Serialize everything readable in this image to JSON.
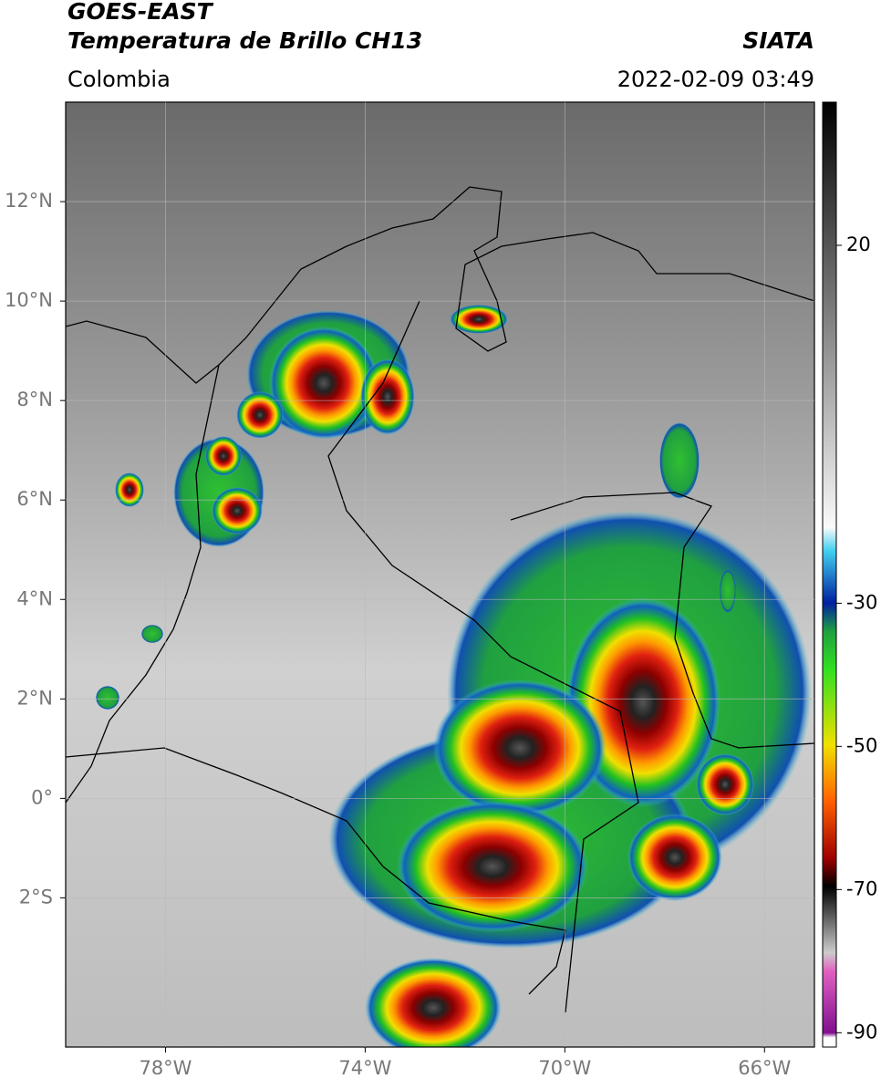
{
  "header": {
    "title": "GOES-EAST",
    "subtitle": "Temperatura de Brillo CH13",
    "region": "Colombia",
    "source": "SIATA",
    "datetime": "2022-02-09 03:49"
  },
  "map": {
    "xlim": [
      -80,
      -65
    ],
    "ylim": [
      -5,
      14
    ],
    "xticks": [
      {
        "value": -78,
        "label": "78°W"
      },
      {
        "value": -74,
        "label": "74°W"
      },
      {
        "value": -70,
        "label": "70°W"
      },
      {
        "value": -66,
        "label": "66°W"
      }
    ],
    "yticks": [
      {
        "value": 12,
        "label": "12°N"
      },
      {
        "value": 10,
        "label": "10°N"
      },
      {
        "value": 8,
        "label": "8°N"
      },
      {
        "value": 6,
        "label": "6°N"
      },
      {
        "value": 4,
        "label": "4°N"
      },
      {
        "value": 2,
        "label": "2°N"
      },
      {
        "value": 0,
        "label": "0°"
      },
      {
        "value": -2,
        "label": "2°S"
      }
    ],
    "grid": true
  },
  "colorbar": {
    "lim": [
      -92,
      40
    ],
    "ticks": [
      20,
      -30,
      -50,
      -70,
      -90
    ]
  }
}
